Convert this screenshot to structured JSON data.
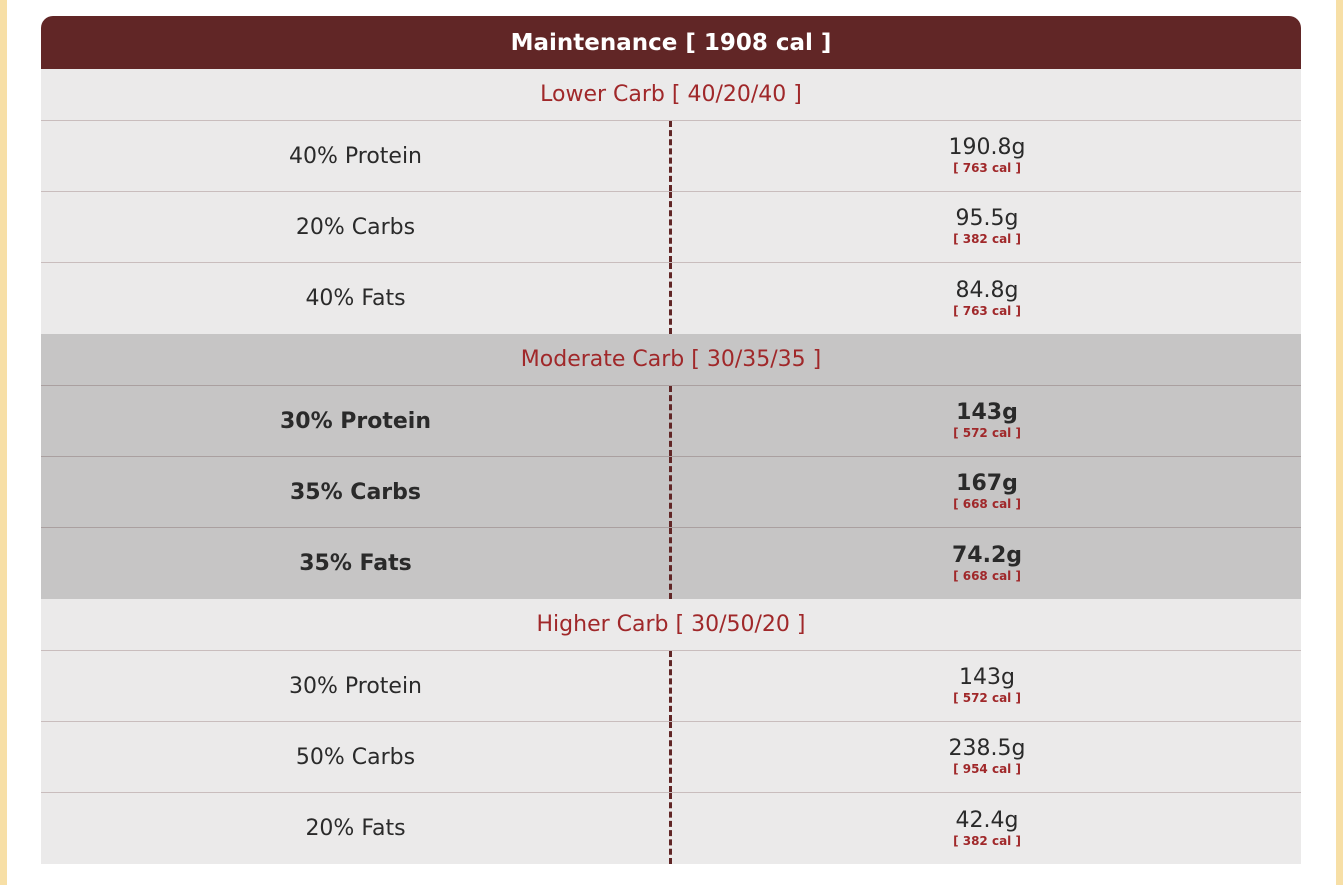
{
  "header": {
    "title": "Maintenance [ 1908 cal ]"
  },
  "sections": [
    {
      "title": "Lower Carb [ 40/20/40 ]",
      "rows": [
        {
          "label": "40% Protein",
          "grams": "190.8g",
          "cal": "[ 763 cal ]"
        },
        {
          "label": "20% Carbs",
          "grams": "95.5g",
          "cal": "[ 382 cal ]"
        },
        {
          "label": "40% Fats",
          "grams": "84.8g",
          "cal": "[ 763 cal ]"
        }
      ]
    },
    {
      "title": "Moderate Carb [ 30/35/35 ]",
      "rows": [
        {
          "label": "30% Protein",
          "grams": "143g",
          "cal": "[ 572 cal ]"
        },
        {
          "label": "35% Carbs",
          "grams": "167g",
          "cal": "[ 668 cal ]"
        },
        {
          "label": "35% Fats",
          "grams": "74.2g",
          "cal": "[ 668 cal ]"
        }
      ]
    },
    {
      "title": "Higher Carb [ 30/50/20 ]",
      "rows": [
        {
          "label": "30% Protein",
          "grams": "143g",
          "cal": "[ 572 cal ]"
        },
        {
          "label": "50% Carbs",
          "grams": "238.5g",
          "cal": "[ 954 cal ]"
        },
        {
          "label": "20% Fats",
          "grams": "42.4g",
          "cal": "[ 382 cal ]"
        }
      ]
    }
  ],
  "colors": {
    "header_bg": "#612626",
    "accent_text": "#a0282a",
    "light_bg": "#ebeaea",
    "highlight_bg": "#c6c5c5",
    "page_border": "#f7dfa6"
  }
}
